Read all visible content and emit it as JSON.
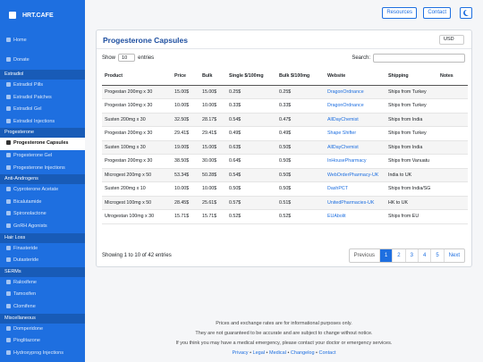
{
  "sidebar": {
    "brand": "HRT.CAFE",
    "nav": [
      "Home",
      "Donate"
    ],
    "groups": [
      {
        "title": "Estradiol",
        "items": [
          "Estradiol Pills",
          "Estradiol Patches",
          "Estradiol Gel",
          "Estradiol Injections"
        ]
      },
      {
        "title": "Progesterone",
        "items": [
          "Progesterone Capsules",
          "Progesterone Gel",
          "Progesterone Injections"
        ]
      },
      {
        "title": "Anti-Androgens",
        "items": [
          "Cyproterone Acetate",
          "Bicalutamide",
          "Spironolactone",
          "GnRH Agonists"
        ]
      },
      {
        "title": "Hair Loss",
        "items": [
          "Finasteride",
          "Dutasteride"
        ]
      },
      {
        "title": "SERMs",
        "items": [
          "Raloxifene",
          "Tamoxifen",
          "Clomifene"
        ]
      },
      {
        "title": "Miscellaneous",
        "items": [
          "Domperidone",
          "Pioglitazone",
          "Hydroxyprog Injections"
        ]
      }
    ]
  },
  "topbar": {
    "buttons": [
      "Resources",
      "Contact"
    ]
  },
  "card": {
    "title": "Progesterone Capsules",
    "currency": "USD",
    "length": {
      "before": "Show",
      "value": "10",
      "after": "entries"
    },
    "search": "Search:",
    "table": {
      "headers": [
        "Product",
        "Price",
        "Bulk",
        "Single $/100mg",
        "Bulk $/100mg",
        "Website",
        "Shipping",
        "Notes"
      ],
      "rows": [
        [
          "Progestan 200mg x 30",
          "15.00$",
          "15.00$",
          "0.25$",
          "0.25$",
          "DragonOrdnance",
          "Ships from Turkey",
          ""
        ],
        [
          "Progestan 100mg x 30",
          "10.00$",
          "10.00$",
          "0.33$",
          "0.33$",
          "DragonOrdnance",
          "Ships from Turkey",
          ""
        ],
        [
          "Susten 200mg x 30",
          "32.50$",
          "28.17$",
          "0.54$",
          "0.47$",
          "AllDayChemist",
          "Ships from India",
          ""
        ],
        [
          "Progestan 200mg x 30",
          "29.41$",
          "29.41$",
          "0.49$",
          "0.49$",
          "Shape Shifter",
          "Ships from Turkey",
          ""
        ],
        [
          "Susten 100mg x 30",
          "19.00$",
          "15.00$",
          "0.63$",
          "0.50$",
          "AllDayChemist",
          "Ships from India",
          ""
        ],
        [
          "Progestan 200mg x 30",
          "38.50$",
          "30.00$",
          "0.64$",
          "0.50$",
          "InHousePharmacy",
          "Ships from Vanuatu",
          ""
        ],
        [
          "Microgest 200mg x 50",
          "53.34$",
          "50.28$",
          "0.54$",
          "0.50$",
          "WebOrderPharmacy-UK",
          "India to UK",
          ""
        ],
        [
          "Susten 200mg x 10",
          "10.00$",
          "10.00$",
          "0.50$",
          "0.50$",
          "DashPCT",
          "Ships from India/SG",
          ""
        ],
        [
          "Microgest 100mg x 50",
          "28.45$",
          "25.61$",
          "0.57$",
          "0.51$",
          "UnitedPharmacies-UK",
          "HK to UK",
          ""
        ],
        [
          "Utrogestan 100mg x 30",
          "15.71$",
          "15.71$",
          "0.52$",
          "0.52$",
          "EUAbolit",
          "Ships from EU",
          ""
        ]
      ]
    },
    "info": "Showing 1 to 10 of 42 entries",
    "pagination": [
      "Previous",
      "1",
      "2",
      "3",
      "4",
      "5",
      "Next"
    ]
  },
  "footer": {
    "lines": [
      "Prices and exchange rates are for informational purposes only.",
      "They are not guaranteed to be accurate and are subject to change without notice.",
      "If you think you may have a medical emergency, please contact your doctor or emergency services."
    ],
    "links": [
      "Privacy",
      "Legal",
      "Medical",
      "Changelog",
      "Contact"
    ]
  }
}
